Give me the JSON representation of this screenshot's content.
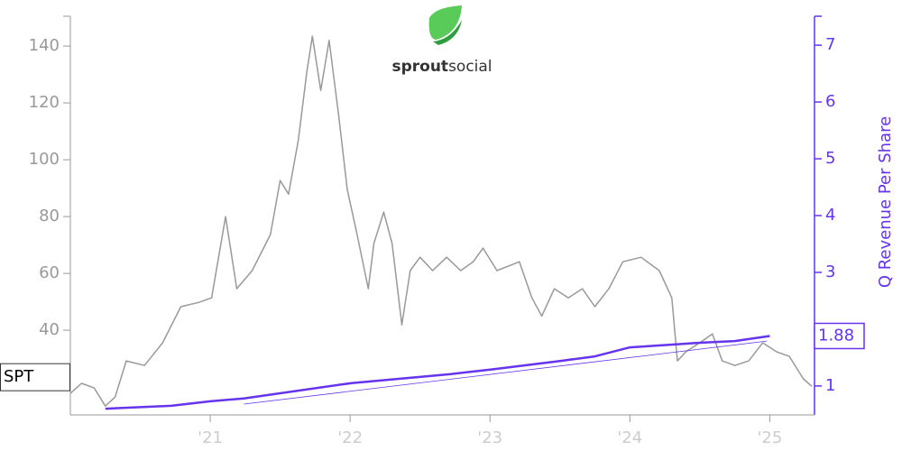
{
  "chart_data": {
    "type": "line",
    "logo": {
      "bold": "sprout",
      "regular": "social"
    },
    "y2_label": "Q Revenue Per Share",
    "xlim": [
      2020.0,
      2025.32
    ],
    "xticks": [
      {
        "value": 2021,
        "label": "'21"
      },
      {
        "value": 2022,
        "label": "'22"
      },
      {
        "value": 2023,
        "label": "'23"
      },
      {
        "value": 2024,
        "label": "'24"
      },
      {
        "value": 2025,
        "label": "'25"
      }
    ],
    "ylim": [
      10.2,
      150.5
    ],
    "yticks": [
      40,
      60,
      80,
      100,
      120,
      140
    ],
    "y2lim": [
      0.49,
      7.51
    ],
    "y2ticks": [
      1,
      3,
      4,
      5,
      6,
      7
    ],
    "series": [
      {
        "name": "SPT",
        "color": "#999999",
        "axis": "y",
        "x": [
          2020.0,
          2020.08,
          2020.17,
          2020.25,
          2020.32,
          2020.4,
          2020.53,
          2020.66,
          2020.79,
          2020.92,
          2021.01,
          2021.11,
          2021.19,
          2021.3,
          2021.43,
          2021.5,
          2021.56,
          2021.63,
          2021.69,
          2021.73,
          2021.79,
          2021.85,
          2021.92,
          2021.98,
          2022.05,
          2022.13,
          2022.17,
          2022.24,
          2022.3,
          2022.37,
          2022.43,
          2022.5,
          2022.59,
          2022.69,
          2022.79,
          2022.88,
          2022.95,
          2023.05,
          2023.21,
          2023.3,
          2023.37,
          2023.46,
          2023.56,
          2023.66,
          2023.75,
          2023.85,
          2023.95,
          2024.08,
          2024.21,
          2024.3,
          2024.34,
          2024.4,
          2024.5,
          2024.59,
          2024.66,
          2024.75,
          2024.85,
          2024.95,
          2025.05,
          2025.14,
          2025.24,
          2025.3
        ],
        "values": [
          17.8,
          21.3,
          19.7,
          13.3,
          16.5,
          29.2,
          27.6,
          35.6,
          48.3,
          49.8,
          51.4,
          80,
          54.6,
          61,
          73.7,
          92.7,
          87.9,
          107,
          130.8,
          143.5,
          124.4,
          142,
          115,
          89.5,
          73.7,
          54.6,
          70.5,
          81.6,
          70.5,
          41.9,
          61,
          65.7,
          61,
          65.7,
          61,
          64.1,
          68.9,
          61,
          64.1,
          51.4,
          45,
          54.6,
          51.4,
          54.6,
          48.3,
          54.6,
          64.1,
          65.7,
          61,
          51.4,
          29.2,
          32.4,
          35.6,
          38.7,
          29.2,
          27.6,
          29.2,
          35.6,
          32.4,
          30.8,
          22.9,
          20.3
        ]
      },
      {
        "color": "#6633ee",
        "axis": "y2",
        "width": 2.5,
        "x": [
          2020.25,
          2020.72,
          2021.0,
          2021.24,
          2022.01,
          2022.72,
          2023.01,
          2023.5,
          2023.75,
          2024.0,
          2024.5,
          2024.75,
          2025.0
        ],
        "values": [
          0.6,
          0.65,
          0.73,
          0.78,
          1.05,
          1.21,
          1.29,
          1.44,
          1.52,
          1.68,
          1.76,
          1.79,
          1.88
        ],
        "value_labels": [
          null,
          null,
          null,
          null,
          null,
          null,
          null,
          null,
          null,
          null,
          null,
          null,
          "1.88"
        ]
      },
      {
        "color": "#6633ee",
        "axis": "y2",
        "width": 0.8,
        "x": [
          2021.24,
          2024.98
        ],
        "values": [
          0.68,
          1.79
        ]
      }
    ]
  }
}
